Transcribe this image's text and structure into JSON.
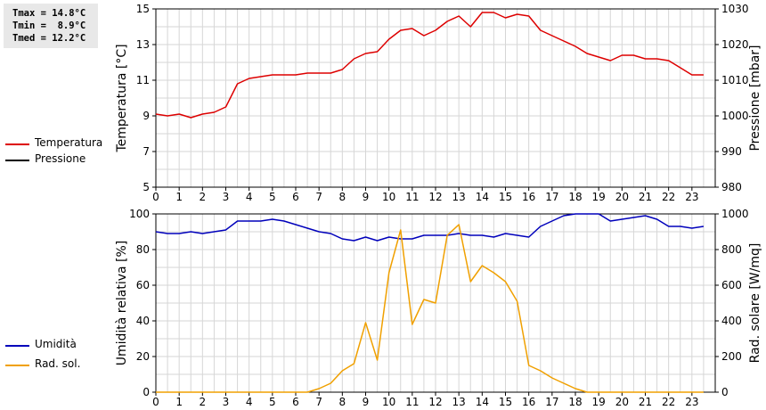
{
  "stats": {
    "tmax": "Tmax = 14.8°C",
    "tmin": "Tmin =  8.9°C",
    "tmed": "Tmed = 12.2°C"
  },
  "legend_top": [
    {
      "label": "Temperatura",
      "color": "#dd0000"
    },
    {
      "label": "Pressione",
      "color": "#000000"
    }
  ],
  "legend_bottom": [
    {
      "label": "Umidità",
      "color": "#0000bb"
    },
    {
      "label": "Rad. sol.",
      "color": "#f0a000"
    }
  ],
  "chart_data": [
    {
      "type": "line",
      "title": "",
      "xlabel": "",
      "x_ticks": [
        0,
        1,
        2,
        3,
        4,
        5,
        6,
        7,
        8,
        9,
        10,
        11,
        12,
        13,
        14,
        15,
        16,
        17,
        18,
        19,
        20,
        21,
        22,
        23
      ],
      "xlim": [
        0,
        24
      ],
      "ylabel": "Temperatura [°C]",
      "ylim": [
        5,
        15
      ],
      "y_ticks": [
        5,
        7,
        9,
        11,
        13,
        15
      ],
      "y2label": "Pressione [mbar]",
      "y2lim": [
        980,
        1030
      ],
      "y2_ticks": [
        980,
        990,
        1000,
        1010,
        1020,
        1030
      ],
      "grid": true,
      "series": [
        {
          "name": "Temperatura",
          "axis": "left",
          "color": "#dd0000",
          "x": [
            0,
            0.5,
            1,
            1.5,
            2,
            2.5,
            3,
            3.5,
            4,
            4.5,
            5,
            5.5,
            6,
            6.5,
            7,
            7.5,
            8,
            8.5,
            9,
            9.5,
            10,
            10.5,
            11,
            11.5,
            12,
            12.5,
            13,
            13.5,
            14,
            14.5,
            15,
            15.5,
            16,
            16.5,
            17,
            17.5,
            18,
            18.5,
            19,
            19.5,
            20,
            20.5,
            21,
            21.5,
            22,
            22.5,
            23,
            23.5
          ],
          "values": [
            9.1,
            9.0,
            9.1,
            8.9,
            9.1,
            9.2,
            9.5,
            10.8,
            11.1,
            11.2,
            11.3,
            11.3,
            11.3,
            11.4,
            11.4,
            11.4,
            11.6,
            12.2,
            12.5,
            12.6,
            13.3,
            13.8,
            13.9,
            13.5,
            13.8,
            14.3,
            14.6,
            14.0,
            14.8,
            14.8,
            14.5,
            14.7,
            14.6,
            13.8,
            13.5,
            13.2,
            12.9,
            12.5,
            12.3,
            12.1,
            12.4,
            12.4,
            12.2,
            12.2,
            12.1,
            11.7,
            11.3,
            11.3
          ]
        },
        {
          "name": "Pressione",
          "axis": "right",
          "color": "#000000",
          "x": [],
          "values": []
        }
      ]
    },
    {
      "type": "line",
      "title": "",
      "xlabel": "",
      "x_ticks": [
        0,
        1,
        2,
        3,
        4,
        5,
        6,
        7,
        8,
        9,
        10,
        11,
        12,
        13,
        14,
        15,
        16,
        17,
        18,
        19,
        20,
        21,
        22,
        23
      ],
      "xlim": [
        0,
        24
      ],
      "ylabel": "Umidità relativa [%]",
      "ylim": [
        0,
        100
      ],
      "y_ticks": [
        0,
        20,
        40,
        60,
        80,
        100
      ],
      "y2label": "Rad. solare [W/mq]",
      "y2lim": [
        0,
        1000
      ],
      "y2_ticks": [
        0,
        200,
        400,
        600,
        800,
        1000
      ],
      "grid": true,
      "series": [
        {
          "name": "Umidità",
          "axis": "left",
          "color": "#0000bb",
          "x": [
            0,
            0.5,
            1,
            1.5,
            2,
            2.5,
            3,
            3.5,
            4,
            4.5,
            5,
            5.5,
            6,
            6.5,
            7,
            7.5,
            8,
            8.5,
            9,
            9.5,
            10,
            10.5,
            11,
            11.5,
            12,
            12.5,
            13,
            13.5,
            14,
            14.5,
            15,
            15.5,
            16,
            16.5,
            17,
            17.5,
            18,
            18.5,
            19,
            19.5,
            20,
            20.5,
            21,
            21.5,
            22,
            22.5,
            23,
            23.5
          ],
          "values": [
            90,
            89,
            89,
            90,
            89,
            90,
            91,
            96,
            96,
            96,
            97,
            96,
            94,
            92,
            90,
            89,
            86,
            85,
            87,
            85,
            87,
            86,
            86,
            88,
            88,
            88,
            89,
            88,
            88,
            87,
            89,
            88,
            87,
            93,
            96,
            99,
            100,
            100,
            100,
            96,
            97,
            98,
            99,
            97,
            93,
            93,
            92,
            93
          ]
        },
        {
          "name": "Rad. sol.",
          "axis": "right",
          "color": "#f0a000",
          "x": [
            0,
            0.5,
            1,
            1.5,
            2,
            2.5,
            3,
            3.5,
            4,
            4.5,
            5,
            5.5,
            6,
            6.5,
            7,
            7.5,
            8,
            8.5,
            9,
            9.5,
            10,
            10.5,
            11,
            11.5,
            12,
            12.5,
            13,
            13.5,
            14,
            14.5,
            15,
            15.5,
            16,
            16.5,
            17,
            17.5,
            18,
            18.5,
            19,
            19.5,
            20,
            20.5,
            21,
            21.5,
            22,
            22.5,
            23,
            23.5
          ],
          "values": [
            0,
            0,
            0,
            0,
            0,
            0,
            0,
            0,
            0,
            0,
            0,
            0,
            0,
            0,
            20,
            50,
            120,
            160,
            390,
            180,
            670,
            910,
            380,
            520,
            500,
            880,
            940,
            620,
            710,
            670,
            620,
            510,
            150,
            120,
            80,
            50,
            20,
            0,
            0,
            0,
            0,
            0,
            0,
            0,
            0,
            0,
            0,
            0
          ]
        }
      ]
    }
  ]
}
